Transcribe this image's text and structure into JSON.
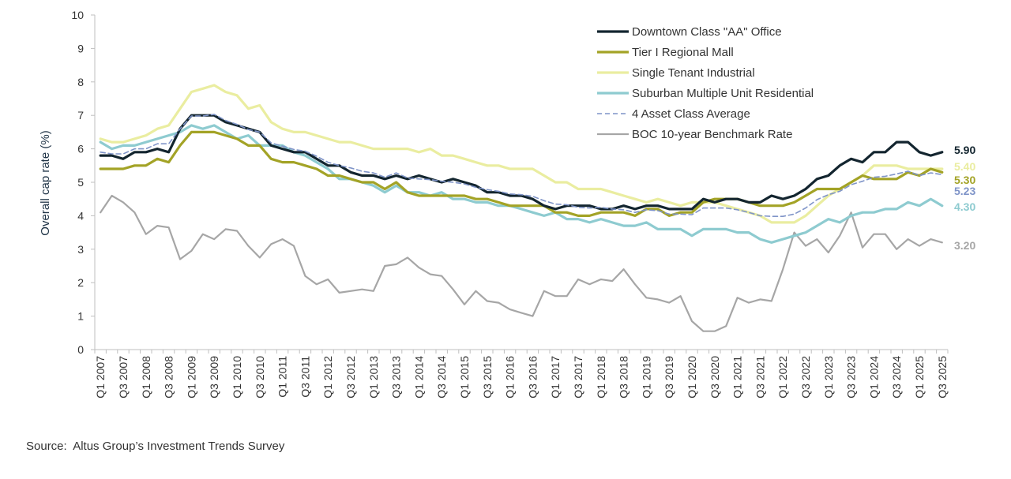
{
  "chart_data": {
    "type": "line",
    "ylabel": "Overall cap rate (%)",
    "ylim": [
      0,
      10
    ],
    "yticks": [
      0,
      1,
      2,
      3,
      4,
      5,
      6,
      7,
      8,
      9,
      10
    ],
    "x": [
      "Q1 2007",
      "Q2 2007",
      "Q3 2007",
      "Q4 2007",
      "Q1 2008",
      "Q2 2008",
      "Q3 2008",
      "Q4 2008",
      "Q1 2009",
      "Q2 2009",
      "Q3 2009",
      "Q4 2009",
      "Q1 2010",
      "Q2 2010",
      "Q3 2010",
      "Q4 2010",
      "Q1 2011",
      "Q2 2011",
      "Q3 2011",
      "Q4 2011",
      "Q1 2012",
      "Q2 2012",
      "Q3 2012",
      "Q4 2012",
      "Q1 2013",
      "Q2 2013",
      "Q3 2013",
      "Q4 2013",
      "Q1 2014",
      "Q2 2014",
      "Q3 2014",
      "Q4 2014",
      "Q1 2015",
      "Q2 2015",
      "Q3 2015",
      "Q4 2015",
      "Q1 2016",
      "Q2 2016",
      "Q3 2016",
      "Q4 2016",
      "Q1 2017",
      "Q2 2017",
      "Q3 2017",
      "Q4 2017",
      "Q1 2018",
      "Q2 2018",
      "Q3 2018",
      "Q4 2018",
      "Q1 2019",
      "Q2 2019",
      "Q3 2019",
      "Q4 2019",
      "Q1 2020",
      "Q2 2020",
      "Q3 2020",
      "Q4 2020",
      "Q1 2021",
      "Q2 2021",
      "Q3 2021",
      "Q4 2021",
      "Q1 2022",
      "Q2 2022",
      "Q3 2022",
      "Q4 2022",
      "Q1 2023",
      "Q2 2023",
      "Q3 2023",
      "Q4 2023",
      "Q1 2024",
      "Q2 2024",
      "Q3 2024",
      "Q4 2024",
      "Q1 2025",
      "Q2 2025",
      "Q3 2025"
    ],
    "xtick_labels": [
      "Q1 2007",
      "Q3 2007",
      "Q1 2008",
      "Q3 2008",
      "Q1 2009",
      "Q3 2009",
      "Q1 2010",
      "Q3 2010",
      "Q1 2011",
      "Q3 2011",
      "Q1 2012",
      "Q3 2012",
      "Q1 2013",
      "Q3 2013",
      "Q1 2014",
      "Q3 2014",
      "Q1 2015",
      "Q3 2015",
      "Q1 2016",
      "Q3 2016",
      "Q1 2017",
      "Q3 2017",
      "Q1 2018",
      "Q3 2018",
      "Q1 2019",
      "Q3 2019",
      "Q1 2020",
      "Q3 2020",
      "Q1 2021",
      "Q3 2021",
      "Q1 2022",
      "Q3 2022",
      "Q1 2023",
      "Q3 2023",
      "Q1 2024",
      "Q3 2024",
      "Q1 2025",
      "Q3 2025"
    ],
    "grid": false,
    "legend_position": "top-right",
    "series": [
      {
        "name": "Downtown Class \"AA\" Office",
        "color": "#13252f",
        "style": "solid",
        "end_label": "5.90",
        "values": [
          5.8,
          5.8,
          5.7,
          5.9,
          5.9,
          6.0,
          5.9,
          6.6,
          7.0,
          7.0,
          7.0,
          6.8,
          6.7,
          6.6,
          6.5,
          6.1,
          6.0,
          5.9,
          5.9,
          5.7,
          5.5,
          5.5,
          5.3,
          5.2,
          5.2,
          5.1,
          5.2,
          5.1,
          5.2,
          5.1,
          5.0,
          5.1,
          5.0,
          4.9,
          4.7,
          4.7,
          4.6,
          4.6,
          4.5,
          4.3,
          4.2,
          4.3,
          4.3,
          4.3,
          4.2,
          4.2,
          4.3,
          4.2,
          4.3,
          4.3,
          4.2,
          4.2,
          4.2,
          4.5,
          4.4,
          4.5,
          4.5,
          4.4,
          4.4,
          4.6,
          4.5,
          4.6,
          4.8,
          5.1,
          5.2,
          5.5,
          5.7,
          5.6,
          5.9,
          5.9,
          6.2,
          6.2,
          5.9,
          5.8,
          5.9
        ]
      },
      {
        "name": "Tier I Regional Mall",
        "color": "#a3a326",
        "style": "solid",
        "end_label": "5.30",
        "values": [
          5.4,
          5.4,
          5.4,
          5.5,
          5.5,
          5.7,
          5.6,
          6.1,
          6.5,
          6.5,
          6.5,
          6.4,
          6.3,
          6.1,
          6.1,
          5.7,
          5.6,
          5.6,
          5.5,
          5.4,
          5.2,
          5.2,
          5.1,
          5.0,
          5.0,
          4.8,
          5.0,
          4.7,
          4.6,
          4.6,
          4.6,
          4.6,
          4.6,
          4.5,
          4.5,
          4.4,
          4.3,
          4.3,
          4.3,
          4.3,
          4.1,
          4.1,
          4.0,
          4.0,
          4.1,
          4.1,
          4.1,
          4.0,
          4.2,
          4.2,
          4.0,
          4.1,
          4.1,
          4.4,
          4.5,
          4.5,
          4.5,
          4.4,
          4.3,
          4.3,
          4.3,
          4.4,
          4.6,
          4.8,
          4.8,
          4.8,
          5.0,
          5.2,
          5.1,
          5.1,
          5.1,
          5.3,
          5.2,
          5.4,
          5.3
        ]
      },
      {
        "name": "Single Tenant Industrial",
        "color": "#eaeda0",
        "style": "solid",
        "end_label": "5.40",
        "values": [
          6.3,
          6.2,
          6.2,
          6.3,
          6.4,
          6.6,
          6.7,
          7.2,
          7.7,
          7.8,
          7.9,
          7.7,
          7.6,
          7.2,
          7.3,
          6.8,
          6.6,
          6.5,
          6.5,
          6.4,
          6.3,
          6.2,
          6.2,
          6.1,
          6.0,
          6.0,
          6.0,
          6.0,
          5.9,
          6.0,
          5.8,
          5.8,
          5.7,
          5.6,
          5.5,
          5.5,
          5.4,
          5.4,
          5.4,
          5.2,
          5.0,
          5.0,
          4.8,
          4.8,
          4.8,
          4.7,
          4.6,
          4.5,
          4.4,
          4.5,
          4.4,
          4.3,
          4.4,
          4.4,
          4.4,
          4.3,
          4.2,
          4.1,
          4.0,
          3.8,
          3.8,
          3.8,
          4.0,
          4.3,
          4.6,
          4.8,
          5.0,
          5.2,
          5.5,
          5.5,
          5.5,
          5.4,
          5.4,
          5.4,
          5.4
        ]
      },
      {
        "name": "Suburban Multiple Unit Residential",
        "color": "#8ecbd0",
        "style": "solid",
        "end_label": "4.30",
        "values": [
          6.2,
          6.0,
          6.1,
          6.1,
          6.2,
          6.3,
          6.4,
          6.5,
          6.7,
          6.6,
          6.7,
          6.5,
          6.3,
          6.4,
          6.1,
          6.1,
          6.1,
          5.9,
          5.8,
          5.6,
          5.4,
          5.1,
          5.1,
          5.0,
          4.9,
          4.7,
          4.9,
          4.7,
          4.7,
          4.6,
          4.7,
          4.5,
          4.5,
          4.4,
          4.4,
          4.3,
          4.3,
          4.2,
          4.1,
          4.0,
          4.1,
          3.9,
          3.9,
          3.8,
          3.9,
          3.8,
          3.7,
          3.7,
          3.8,
          3.6,
          3.6,
          3.6,
          3.4,
          3.6,
          3.6,
          3.6,
          3.5,
          3.5,
          3.3,
          3.2,
          3.3,
          3.4,
          3.5,
          3.7,
          3.9,
          3.8,
          4.0,
          4.1,
          4.1,
          4.2,
          4.2,
          4.4,
          4.3,
          4.5,
          4.3
        ]
      },
      {
        "name": "4 Asset Class Average",
        "color": "#7f94c8",
        "style": "dashed",
        "end_label": "5.23",
        "values": [
          5.9,
          5.85,
          5.85,
          6.0,
          6.0,
          6.15,
          6.15,
          6.6,
          6.98,
          6.98,
          7.03,
          6.85,
          6.73,
          6.58,
          6.5,
          6.18,
          6.08,
          5.98,
          5.93,
          5.78,
          5.6,
          5.5,
          5.43,
          5.33,
          5.28,
          5.15,
          5.28,
          5.13,
          5.1,
          5.08,
          5.03,
          5.0,
          4.95,
          4.85,
          4.78,
          4.73,
          4.65,
          4.63,
          4.58,
          4.45,
          4.35,
          4.33,
          4.25,
          4.23,
          4.25,
          4.2,
          4.18,
          4.1,
          4.18,
          4.15,
          4.05,
          4.05,
          4.03,
          4.23,
          4.23,
          4.23,
          4.18,
          4.1,
          4.0,
          3.98,
          3.98,
          4.05,
          4.23,
          4.48,
          4.63,
          4.73,
          4.93,
          5.03,
          5.15,
          5.18,
          5.25,
          5.33,
          5.2,
          5.28,
          5.23
        ]
      },
      {
        "name": "BOC 10-year Benchmark Rate",
        "color": "#a6a6a6",
        "style": "solid",
        "end_label": "3.20",
        "values": [
          4.1,
          4.6,
          4.4,
          4.1,
          3.45,
          3.7,
          3.65,
          2.7,
          2.95,
          3.45,
          3.3,
          3.6,
          3.55,
          3.1,
          2.75,
          3.15,
          3.3,
          3.1,
          2.2,
          1.95,
          2.1,
          1.7,
          1.75,
          1.8,
          1.75,
          2.5,
          2.55,
          2.75,
          2.45,
          2.25,
          2.2,
          1.8,
          1.35,
          1.75,
          1.45,
          1.4,
          1.2,
          1.1,
          1.0,
          1.75,
          1.6,
          1.6,
          2.1,
          1.95,
          2.1,
          2.05,
          2.4,
          1.95,
          1.55,
          1.5,
          1.4,
          1.6,
          0.85,
          0.55,
          0.55,
          0.7,
          1.55,
          1.4,
          1.5,
          1.45,
          2.4,
          3.5,
          3.1,
          3.3,
          2.9,
          3.4,
          4.1,
          3.05,
          3.45,
          3.45,
          3.0,
          3.3,
          3.1,
          3.3,
          3.2
        ]
      }
    ]
  },
  "source": "Source:  Altus Group’s Investment Trends Survey"
}
